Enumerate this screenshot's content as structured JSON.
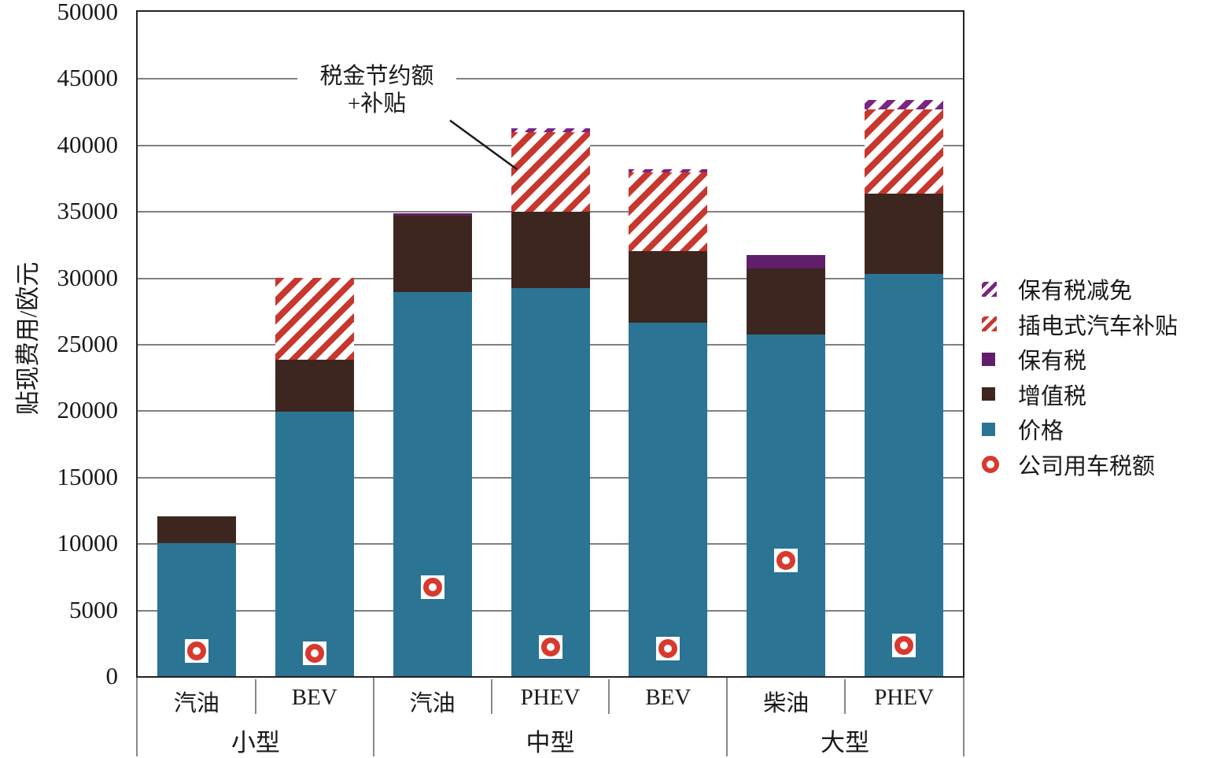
{
  "chart_data": {
    "type": "bar",
    "stacked": true,
    "title": "",
    "ylabel": "贴现费用/欧元",
    "ylim": [
      0,
      50000
    ],
    "ytick_step": 5000,
    "grid": true,
    "legend_position": "right",
    "categories": [
      "汽油",
      "BEV",
      "汽油",
      "PHEV",
      "BEV",
      "柴油",
      "PHEV"
    ],
    "groups": [
      {
        "label": "小型",
        "span": 2
      },
      {
        "label": "中型",
        "span": 3
      },
      {
        "label": "大型",
        "span": 2
      }
    ],
    "series": [
      {
        "name": "价格",
        "style": "solid",
        "color": "#2B7494",
        "values": [
          10000,
          19900,
          28900,
          29200,
          26600,
          25700,
          30300
        ]
      },
      {
        "name": "增值税",
        "style": "solid",
        "color": "#3E2620",
        "values": [
          2000,
          3900,
          5750,
          5750,
          5400,
          5000,
          6000
        ]
      },
      {
        "name": "保有税",
        "style": "solid",
        "color": "#611E6B",
        "values": [
          0,
          0,
          170,
          0,
          0,
          1000,
          0
        ]
      },
      {
        "name": "插电式汽车补贴",
        "style": "hatch",
        "color": "#C8372D",
        "values": [
          0,
          6200,
          0,
          6000,
          5900,
          0,
          6350
        ]
      },
      {
        "name": "保有税减免",
        "style": "hatch",
        "color": "#7A2583",
        "values": [
          0,
          0,
          0,
          300,
          250,
          0,
          700
        ]
      }
    ],
    "markers": {
      "name": "公司用车税额",
      "color": "#D8392C",
      "values": [
        1900,
        1700,
        6700,
        2200,
        2100,
        8700,
        2300
      ]
    },
    "annotation": {
      "line1": "税金节约额",
      "line2": "+补贴",
      "points_to": "PHEV 中型 subsidy area"
    },
    "legend": {
      "items": [
        {
          "label": "保有税减免",
          "swatch": "hatch",
          "color": "#7A2583"
        },
        {
          "label": "插电式汽车补贴",
          "swatch": "hatch",
          "color": "#C8372D"
        },
        {
          "label": "保有税",
          "swatch": "solid",
          "color": "#611E6B"
        },
        {
          "label": "增值税",
          "swatch": "solid",
          "color": "#3E2620"
        },
        {
          "label": "价格",
          "swatch": "solid",
          "color": "#2B7494"
        },
        {
          "label": "公司用车税额",
          "swatch": "ring",
          "color": "#D8392C"
        }
      ]
    },
    "colors": {
      "gridline": "#808080",
      "axis_border": "#262222",
      "marker_background": "#ffffff"
    }
  }
}
